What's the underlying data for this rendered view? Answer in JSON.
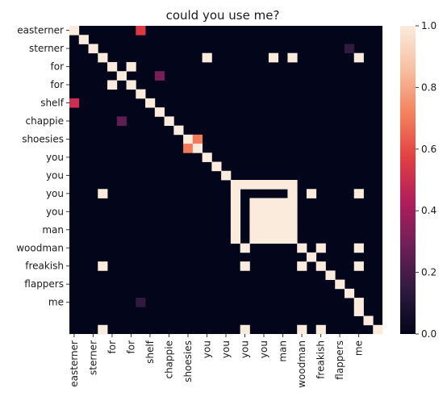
{
  "chart_data": {
    "type": "heatmap",
    "title": "could you use me?",
    "xlabel": "",
    "ylabel": "",
    "tokens": [
      "easterner",
      "",
      "sterner",
      "",
      "for",
      "",
      "for",
      "",
      "shelf",
      "",
      "chappie",
      "",
      "shoesies",
      "",
      "you",
      "",
      "you",
      "",
      "you",
      "",
      "you",
      "",
      "man",
      "",
      "woodman",
      "",
      "freakish",
      "",
      "flappers",
      "",
      "me"
    ],
    "x_tick_labels": [
      "easterner",
      "sterner",
      "for",
      "for",
      "shelf",
      "chappie",
      "shoesies",
      "you",
      "you",
      "you",
      "you",
      "man",
      "woodman",
      "freakish",
      "flappers",
      "me"
    ],
    "y_tick_labels": [
      "easterner",
      "sterner",
      "for",
      "for",
      "shelf",
      "chappie",
      "shoesies",
      "you",
      "you",
      "you",
      "you",
      "man",
      "woodman",
      "freakish",
      "flappers",
      "me"
    ],
    "vmin": 0,
    "vmax": 1,
    "colorbar_ticks": [
      "0.0",
      "0.2",
      "0.4",
      "0.6",
      "0.8",
      "1.0"
    ],
    "colormap": "rocket",
    "colormap_stops": [
      "#03051a",
      "#2e1a3e",
      "#6e1f57",
      "#b01e5c",
      "#e13f42",
      "#f3815d",
      "#f7bea0",
      "#faebdd"
    ],
    "cells": [
      [
        0,
        0,
        1
      ],
      [
        0,
        7,
        0.55
      ],
      [
        1,
        1,
        1
      ],
      [
        2,
        2,
        1
      ],
      [
        2,
        29,
        0.15
      ],
      [
        3,
        3,
        1
      ],
      [
        3,
        14,
        1
      ],
      [
        3,
        21,
        1
      ],
      [
        3,
        23,
        1
      ],
      [
        3,
        30,
        1
      ],
      [
        4,
        4,
        1
      ],
      [
        4,
        6,
        1
      ],
      [
        5,
        5,
        1
      ],
      [
        5,
        9,
        0.3
      ],
      [
        6,
        4,
        1
      ],
      [
        6,
        6,
        1
      ],
      [
        7,
        7,
        1
      ],
      [
        8,
        0,
        0.5
      ],
      [
        8,
        8,
        1
      ],
      [
        9,
        9,
        1
      ],
      [
        10,
        5,
        0.25
      ],
      [
        10,
        10,
        1
      ],
      [
        11,
        11,
        1
      ],
      [
        12,
        12,
        1
      ],
      [
        12,
        13,
        0.7
      ],
      [
        13,
        12,
        0.7
      ],
      [
        13,
        13,
        1
      ],
      [
        14,
        14,
        1
      ],
      [
        15,
        15,
        1
      ],
      [
        16,
        16,
        1
      ],
      [
        17,
        17,
        1
      ],
      [
        17,
        18,
        1
      ],
      [
        17,
        19,
        1
      ],
      [
        17,
        20,
        1
      ],
      [
        17,
        21,
        1
      ],
      [
        17,
        22,
        1
      ],
      [
        17,
        23,
        1
      ],
      [
        18,
        3,
        1
      ],
      [
        18,
        17,
        1
      ],
      [
        18,
        23,
        1
      ],
      [
        18,
        25,
        1
      ],
      [
        18,
        30,
        1
      ],
      [
        19,
        17,
        1
      ],
      [
        19,
        19,
        1
      ],
      [
        19,
        20,
        1
      ],
      [
        19,
        21,
        1
      ],
      [
        19,
        22,
        1
      ],
      [
        19,
        23,
        1
      ],
      [
        20,
        17,
        1
      ],
      [
        20,
        19,
        1
      ],
      [
        20,
        20,
        1
      ],
      [
        20,
        21,
        1
      ],
      [
        20,
        22,
        1
      ],
      [
        20,
        23,
        1
      ],
      [
        21,
        17,
        1
      ],
      [
        21,
        19,
        1
      ],
      [
        21,
        20,
        1
      ],
      [
        21,
        21,
        1
      ],
      [
        21,
        22,
        1
      ],
      [
        21,
        23,
        1
      ],
      [
        22,
        17,
        1
      ],
      [
        22,
        19,
        1
      ],
      [
        22,
        20,
        1
      ],
      [
        22,
        21,
        1
      ],
      [
        22,
        22,
        1
      ],
      [
        22,
        23,
        1
      ],
      [
        23,
        17,
        1
      ],
      [
        23,
        19,
        1
      ],
      [
        23,
        20,
        1
      ],
      [
        23,
        21,
        1
      ],
      [
        23,
        22,
        1
      ],
      [
        23,
        23,
        1
      ],
      [
        24,
        18,
        1
      ],
      [
        24,
        24,
        1
      ],
      [
        24,
        26,
        1
      ],
      [
        24,
        30,
        1
      ],
      [
        25,
        25,
        1
      ],
      [
        26,
        3,
        1
      ],
      [
        26,
        18,
        1
      ],
      [
        26,
        24,
        1
      ],
      [
        26,
        26,
        1
      ],
      [
        26,
        30,
        1
      ],
      [
        27,
        27,
        1
      ],
      [
        28,
        28,
        1
      ],
      [
        29,
        29,
        1
      ],
      [
        30,
        7,
        0.15
      ],
      [
        30,
        30,
        1
      ],
      [
        31,
        30,
        1
      ],
      [
        32,
        31,
        1
      ],
      [
        33,
        3,
        1
      ],
      [
        33,
        18,
        1
      ],
      [
        33,
        24,
        1
      ],
      [
        33,
        26,
        1
      ],
      [
        33,
        32,
        1
      ]
    ]
  }
}
